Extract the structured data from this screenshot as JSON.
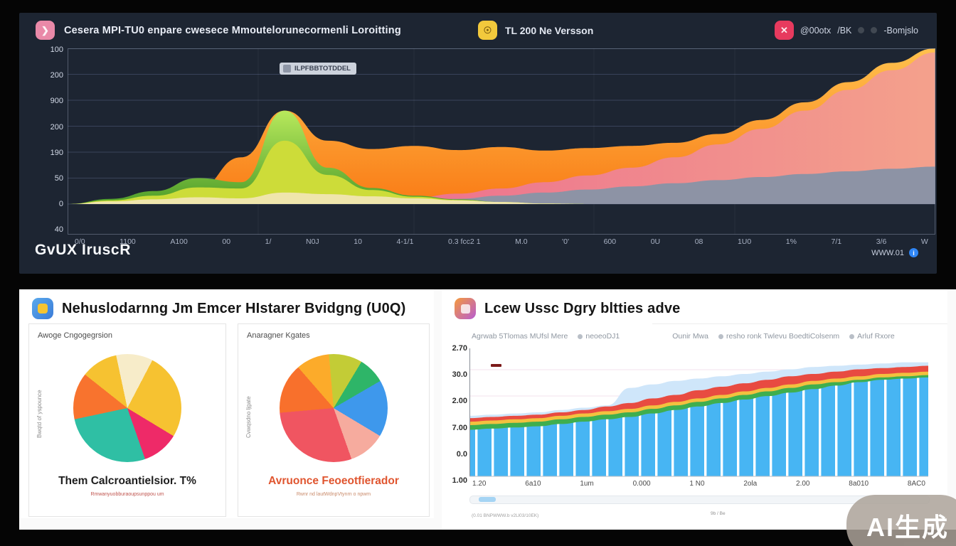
{
  "header": {
    "app_title": "Cesera  MPI-TU0 enpare cwesece Mmoutelorunecormenli Loroitting",
    "center_label": "TL 200 Ne Versson",
    "right_label_1": "@00otx",
    "right_label_2": "/BK",
    "right_label_3": "-Bomjslo"
  },
  "top_chart": {
    "tooltip": "ILPFBBTOTDDEL",
    "y_ticks": [
      "100",
      "200",
      "900",
      "200",
      "190",
      "50",
      "0",
      "40"
    ],
    "x_ticks": [
      "0/0",
      "1100",
      "A100",
      "00",
      "1/",
      "N0J",
      "10",
      "4-1/1",
      "0.3 fcc2 1",
      "M.0",
      "'0'",
      "600",
      "0U",
      "08",
      "1U0",
      "1%",
      "7/1",
      "3/6",
      "W"
    ],
    "footer_left": "GvUX  IruscR",
    "footer_right": "WWW.01"
  },
  "left_card": {
    "title": "Nehuslodarnng Jm Emcer HIstarer Bvidgng (U0Q)",
    "pie1": {
      "label": "Awoge Cngogegrsion",
      "side_label": "Bwqtd of yspounce",
      "caption": "Them Calcroantielsior. T%",
      "subcaption": "Rmwanyuobburaoupsunppou um"
    },
    "pie2": {
      "label": "Anaragner Kgates",
      "side_label": "Cvwqsdno ljgate",
      "caption": "Avruonce Feoeotfierador",
      "subcaption": "Rwnr nd lautWdnpVtynrn o npwm"
    }
  },
  "right_card": {
    "title": "Lcew Ussc Dgry bltties adve",
    "legend": [
      {
        "dot": false,
        "gap": false,
        "text": "Agrwab 5Tlomas MUfsl Mere"
      },
      {
        "dot": true,
        "gap": false,
        "text": "neoeoDJ1"
      },
      {
        "dot": false,
        "gap": true,
        "text": "Ounir Mwa"
      },
      {
        "dot": true,
        "gap": false,
        "text": "resho ronk Twlevu BoedtiColsenm"
      },
      {
        "dot": true,
        "gap": false,
        "text": "Arluf Rxore"
      }
    ],
    "y_ticks": [
      "2.70",
      "30.0",
      "2.00",
      "7.00",
      "0.0",
      "1.00"
    ],
    "x_ticks": [
      "1.20",
      "6a10",
      "1um",
      "0.000",
      "1 N0",
      "2ola",
      "2.00",
      "8a010",
      "8AC0"
    ],
    "footer_left": "(0.01 BNPWWW.b v2Ll03/10EK)",
    "footer_center": "9b / Be"
  },
  "watermark": "AI生成",
  "colors": {
    "panel_dark": "#1d2532",
    "grid_dark": "#39435a",
    "bar_blue": "#47b5f3",
    "accent_blue": "#2f86f6"
  },
  "chart_data": [
    {
      "type": "area",
      "title": "top stacked area chart",
      "x_step_percent": 5,
      "ylim": [
        0,
        300
      ],
      "series": [
        {
          "name": "orange",
          "color_top": "#ffc14d",
          "color_bottom": "#f97b16",
          "values": [
            0,
            3,
            8,
            30,
            90,
            180,
            122,
            106,
            112,
            104,
            110,
            103,
            108,
            112,
            118,
            135,
            162,
            196,
            235,
            272,
            300
          ]
        },
        {
          "name": "pink",
          "color_left": "#e85390",
          "color_right": "#f4a18c",
          "values": [
            0,
            0,
            0,
            0,
            0,
            0,
            0,
            5,
            12,
            20,
            30,
            42,
            55,
            70,
            90,
            115,
            145,
            180,
            220,
            258,
            292
          ]
        },
        {
          "name": "gray-band",
          "color": "#8d93a5",
          "values": [
            0,
            0,
            0,
            0,
            0,
            0,
            0,
            2,
            6,
            10,
            16,
            22,
            28,
            34,
            40,
            46,
            52,
            58,
            63,
            68,
            72
          ]
        },
        {
          "name": "green",
          "color_top": "#b8e95c",
          "color_bottom": "#4f9e2a",
          "values": [
            0,
            10,
            25,
            50,
            42,
            180,
            70,
            31,
            16,
            9,
            4,
            1,
            0,
            0,
            0,
            0,
            0,
            0,
            0,
            0,
            0
          ]
        },
        {
          "name": "yellowgreen",
          "color": "#cddc39",
          "values": [
            0,
            7,
            16,
            32,
            30,
            122,
            56,
            27,
            14,
            8,
            4,
            1,
            0,
            0,
            0,
            0,
            0,
            0,
            0,
            0,
            0
          ]
        },
        {
          "name": "cream",
          "color": "#efe5ac",
          "values": [
            0,
            5,
            9,
            13,
            11,
            22,
            19,
            15,
            11,
            7,
            4,
            1,
            0,
            0,
            0,
            0,
            0,
            0,
            0,
            0,
            0
          ]
        }
      ]
    },
    {
      "type": "pie",
      "title": "Awoge Cngogegrsion",
      "start": -12,
      "slices": [
        {
          "label": "cream",
          "value": 11,
          "color": "#f7ecc9"
        },
        {
          "label": "yellow",
          "value": 26,
          "color": "#f6c231"
        },
        {
          "label": "pink",
          "value": 11,
          "color": "#ee2a68"
        },
        {
          "label": "teal",
          "value": 27,
          "color": "#2fbfa4"
        },
        {
          "label": "orange",
          "value": 14,
          "color": "#f8732e"
        },
        {
          "label": "yellow2",
          "value": 11,
          "color": "#f6c231"
        }
      ]
    },
    {
      "type": "pie",
      "title": "Anaragner Kgates",
      "start": -5,
      "slices": [
        {
          "label": "lime",
          "value": 10,
          "color": "#c3cc36"
        },
        {
          "label": "green",
          "value": 8,
          "color": "#2eb568"
        },
        {
          "label": "blue",
          "value": 17,
          "color": "#3e98ec"
        },
        {
          "label": "salmon",
          "value": 11,
          "color": "#f6ab9e"
        },
        {
          "label": "rose",
          "value": 29,
          "color": "#f05561"
        },
        {
          "label": "orange",
          "value": 15,
          "color": "#f8702c"
        },
        {
          "label": "amber",
          "value": 10,
          "color": "#fcab2a"
        }
      ]
    },
    {
      "type": "area+bar",
      "title": "Lcew Ussc Dgry bltties adve",
      "x_step_percent": 5,
      "ylim": [
        0,
        110
      ],
      "series": [
        {
          "name": "pale-blue",
          "color": "#cfe6fa",
          "values": [
            52,
            53,
            54,
            55,
            57,
            59,
            61,
            76,
            79,
            82,
            84,
            86,
            88,
            90,
            92,
            94,
            95,
            96,
            97,
            98,
            98
          ]
        },
        {
          "name": "red",
          "color": "#e84b41",
          "values": [
            50,
            51,
            52,
            53,
            55,
            57,
            60,
            63,
            67,
            70,
            74,
            77,
            80,
            83,
            86,
            88,
            90,
            92,
            93,
            94,
            95
          ]
        },
        {
          "name": "yellow",
          "color": "#f3c13f",
          "values": [
            47,
            48,
            49,
            50,
            52,
            54,
            56,
            58,
            61,
            64,
            67,
            70,
            73,
            76,
            79,
            82,
            84,
            86,
            88,
            89,
            90
          ]
        },
        {
          "name": "green",
          "color": "#3fae4e",
          "values": [
            44,
            45,
            46,
            47,
            49,
            51,
            53,
            55,
            58,
            61,
            64,
            67,
            70,
            73,
            76,
            79,
            81,
            83,
            85,
            86,
            87
          ]
        },
        {
          "name": "bars",
          "color": "#47b5f3",
          "values": [
            40,
            41,
            42,
            43,
            45,
            47,
            49,
            51,
            54,
            57,
            60,
            63,
            66,
            69,
            72,
            75,
            78,
            81,
            83,
            84,
            85
          ]
        }
      ]
    }
  ]
}
